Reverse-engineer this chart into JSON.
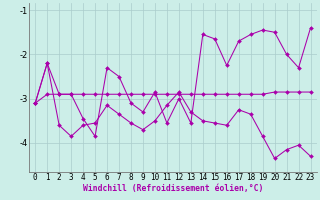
{
  "xlabel": "Windchill (Refroidissement éolien,°C)",
  "background_color": "#cceee8",
  "grid_color": "#aacccc",
  "line_color": "#aa00aa",
  "xlim": [
    -0.5,
    23.5
  ],
  "ylim": [
    -4.65,
    -0.85
  ],
  "yticks": [
    -4,
    -3,
    -2,
    -1
  ],
  "xticks": [
    0,
    1,
    2,
    3,
    4,
    5,
    6,
    7,
    8,
    9,
    10,
    11,
    12,
    13,
    14,
    15,
    16,
    17,
    18,
    19,
    20,
    21,
    22,
    23
  ],
  "series": [
    [
      -3.1,
      -2.2,
      -2.9,
      -2.9,
      -3.45,
      -3.85,
      -2.3,
      -2.5,
      -3.1,
      -3.3,
      -2.85,
      -3.55,
      -3.0,
      -3.55,
      -1.55,
      -1.65,
      -2.25,
      -1.7,
      -1.55,
      -1.45,
      -1.5,
      -2.0,
      -2.3,
      -1.4
    ],
    [
      -3.1,
      -2.9,
      -2.9,
      -2.9,
      -2.9,
      -2.9,
      -2.9,
      -2.9,
      -2.9,
      -2.9,
      -2.9,
      -2.9,
      -2.9,
      -2.9,
      -2.9,
      -2.9,
      -2.9,
      -2.9,
      -2.9,
      -2.9,
      -2.85,
      -2.85,
      -2.85,
      -2.85
    ],
    [
      -3.1,
      -2.2,
      -3.6,
      -3.85,
      -3.6,
      -3.55,
      -3.15,
      -3.35,
      -3.55,
      -3.7,
      -3.5,
      -3.15,
      -2.85,
      -3.3,
      -3.5,
      -3.55,
      -3.6,
      -3.25,
      -3.35,
      -3.85,
      -4.35,
      -4.15,
      -4.05,
      -4.3
    ]
  ],
  "tick_fontsize": 5.5,
  "xlabel_fontsize": 5.8
}
